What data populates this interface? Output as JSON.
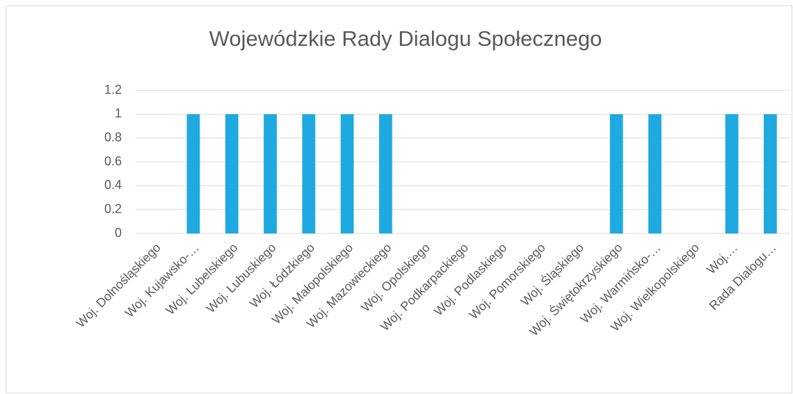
{
  "chart_data": {
    "type": "bar",
    "title": "Wojewódzkie Rady Dialogu Społecznego",
    "categories": [
      "Woj. Dolnośląskiego",
      "Woj. Kujawsko-…",
      "Woj. Lubelskiego",
      "Woj. Lubuskiego",
      "Woj. Łódzkiego",
      "Woj. Małopolskiego",
      "Woj. Mazowieckiego",
      "Woj. Opolskiego",
      "Woj. Podkarpackiego",
      "Woj. Podlaskiego",
      "Woj. Pomorskiego",
      "Woj. Śląskiego",
      "Woj. Świętokrzyskiego",
      "Woj. Warmińsko-…",
      "Woj. Wielkopolskiego",
      "Woj.…",
      "Rada Dialogu…"
    ],
    "values": [
      0,
      1,
      1,
      1,
      1,
      1,
      1,
      0,
      0,
      0,
      0,
      0,
      1,
      1,
      0,
      1,
      1
    ],
    "color": "#1fa9e1",
    "ylim": [
      0,
      1.2
    ],
    "yticks": [
      0,
      0.2,
      0.4,
      0.6,
      0.8,
      1,
      1.2
    ],
    "grid": true
  }
}
